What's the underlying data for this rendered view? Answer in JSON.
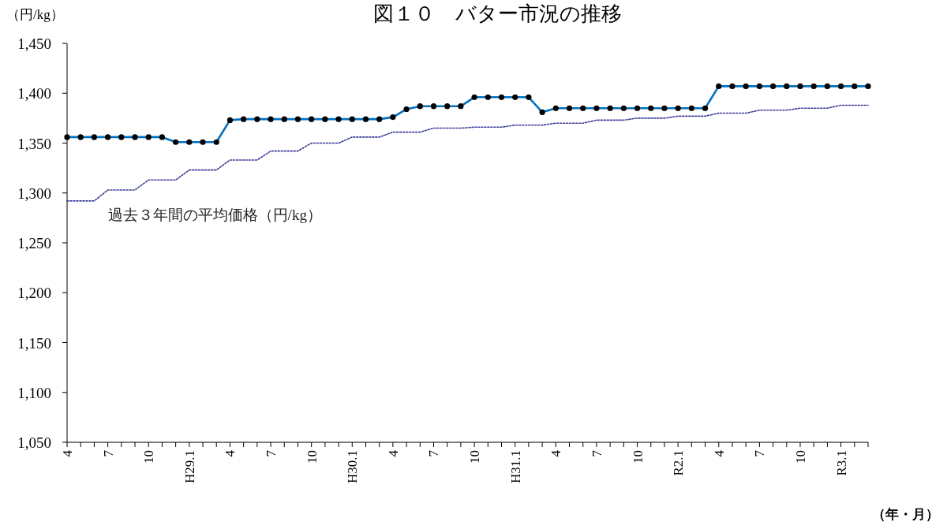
{
  "chart_data": {
    "type": "line",
    "title": "図１０　バター市況の推移",
    "ylabel": "（円/kg）",
    "xlabel": "（年・月）",
    "categories": [
      "4",
      null,
      null,
      "7",
      null,
      null,
      "10",
      null,
      null,
      "H29.1",
      null,
      null,
      "4",
      null,
      null,
      "7",
      null,
      null,
      "10",
      null,
      null,
      "H30.1",
      null,
      null,
      "4",
      null,
      null,
      "7",
      null,
      null,
      "10",
      null,
      null,
      "H31.1",
      null,
      null,
      "4",
      null,
      null,
      "7",
      null,
      null,
      "10",
      null,
      null,
      "R2.1",
      null,
      null,
      "4",
      null,
      null,
      "7",
      null,
      null,
      "10",
      null,
      null,
      "R3.1",
      null,
      null
    ],
    "ylim": [
      1050,
      1450
    ],
    "yticks": [
      {
        "value": 1050,
        "label": "1,050"
      },
      {
        "value": 1100,
        "label": "1,100"
      },
      {
        "value": 1150,
        "label": "1,150"
      },
      {
        "value": 1200,
        "label": "1,200"
      },
      {
        "value": 1250,
        "label": "1,250"
      },
      {
        "value": 1300,
        "label": "1,300"
      },
      {
        "value": 1350,
        "label": "1,350"
      },
      {
        "value": 1400,
        "label": "1,400"
      },
      {
        "value": 1450,
        "label": "1,450"
      }
    ],
    "series": [
      {
        "color": "#0070c0",
        "marker": "circle",
        "line_style": "solid",
        "values": [
          1356,
          1356,
          1356,
          1356,
          1356,
          1356,
          1356,
          1356,
          1351,
          1351,
          1351,
          1351,
          1373,
          1374,
          1374,
          1374,
          1374,
          1374,
          1374,
          1374,
          1374,
          1374,
          1374,
          1374,
          1376,
          1384,
          1387,
          1387,
          1387,
          1387,
          1396,
          1396,
          1396,
          1396,
          1396,
          1381,
          1385,
          1385,
          1385,
          1385,
          1385,
          1385,
          1385,
          1385,
          1385,
          1385,
          1385,
          1385,
          1407,
          1407,
          1407,
          1407,
          1407,
          1407,
          1407,
          1407,
          1407,
          1407,
          1407,
          1407
        ]
      },
      {
        "name": "過去３年間の平均価格（円/kg）",
        "color": "#3a3a9a",
        "marker": "none",
        "line_style": "dotted",
        "values": [
          1292,
          1292,
          1292,
          1303,
          1303,
          1303,
          1313,
          1313,
          1313,
          1323,
          1323,
          1323,
          1333,
          1333,
          1333,
          1342,
          1342,
          1342,
          1350,
          1350,
          1350,
          1356,
          1356,
          1356,
          1361,
          1361,
          1361,
          1365,
          1365,
          1365,
          1366,
          1366,
          1366,
          1368,
          1368,
          1368,
          1370,
          1370,
          1370,
          1373,
          1373,
          1373,
          1375,
          1375,
          1375,
          1377,
          1377,
          1377,
          1380,
          1380,
          1380,
          1383,
          1383,
          1383,
          1385,
          1385,
          1385,
          1388,
          1388,
          1388
        ]
      }
    ]
  }
}
